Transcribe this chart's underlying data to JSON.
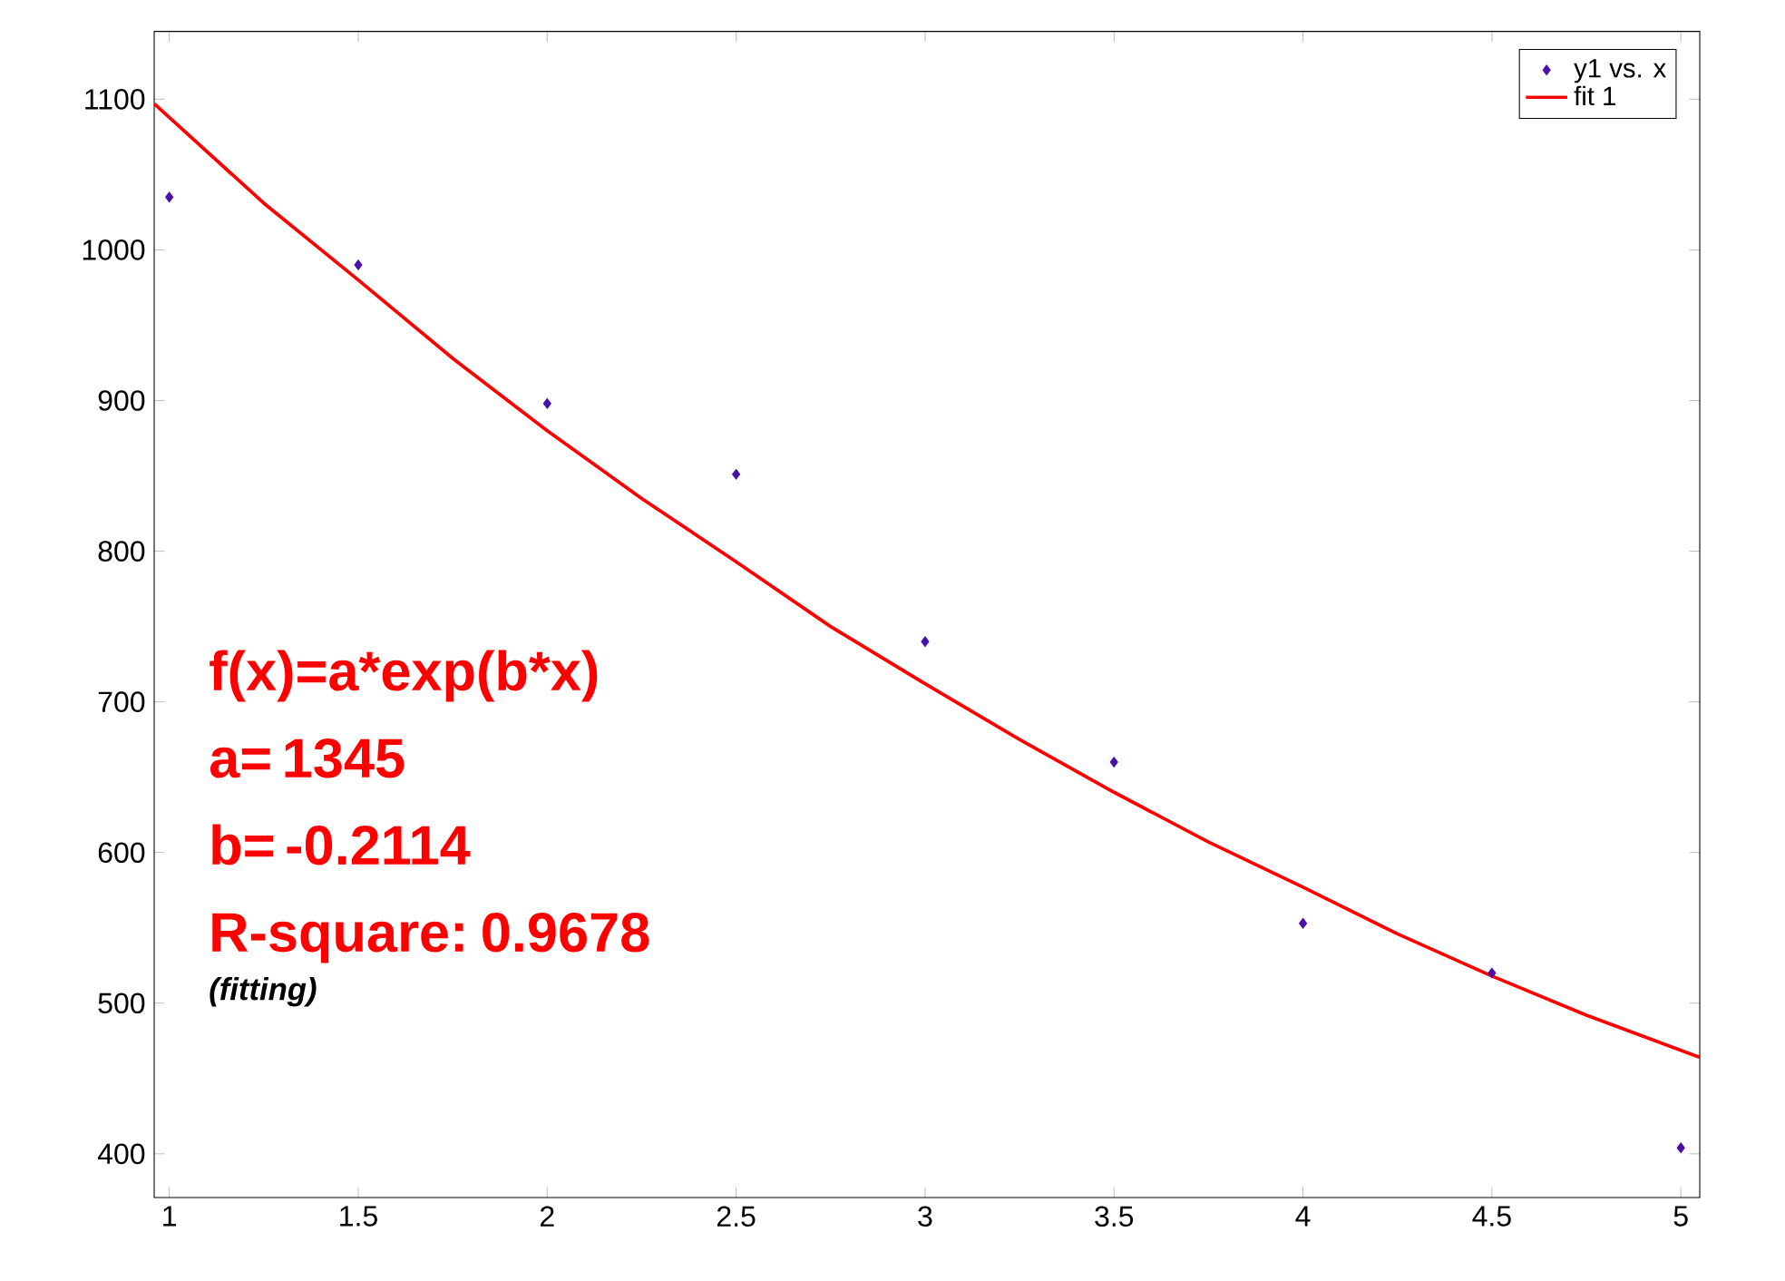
{
  "chart_data": {
    "type": "scatter",
    "xlim": [
      0.96,
      5.05
    ],
    "ylim": [
      371,
      1145
    ],
    "xticks": [
      1,
      1.5,
      2,
      2.5,
      3,
      3.5,
      4,
      4.5,
      5
    ],
    "yticks": [
      400,
      500,
      600,
      700,
      800,
      900,
      1000,
      1100
    ],
    "legend": "top right",
    "series": [
      {
        "name": "y1 vs. x",
        "marker": "diamond",
        "color": "#4b0fa8",
        "x": [
          1,
          1.5,
          2,
          2.5,
          3,
          3.5,
          4,
          4.5,
          5
        ],
        "values": [
          1035,
          990,
          898,
          851,
          740,
          660,
          553,
          520,
          404
        ]
      },
      {
        "name": "fit 1",
        "type": "line",
        "marker": "none",
        "line_style": "solid",
        "color": "#ff0000",
        "x": [
          0.96,
          1.25,
          1.5,
          1.75,
          2,
          2.25,
          2.5,
          2.75,
          3,
          3.25,
          3.5,
          3.75,
          4,
          4.25,
          4.5,
          4.75,
          5.05
        ],
        "values": [
          1097,
          1031,
          980,
          928,
          880,
          835,
          793,
          750,
          712,
          675,
          640,
          607,
          577,
          546,
          518,
          492,
          464
        ]
      }
    ],
    "annotations": [
      "f(x)=a*exp(b*x)",
      "a= 1345",
      "b= -0.2114",
      "R-square: 0.9678",
      "(fitting)"
    ]
  }
}
